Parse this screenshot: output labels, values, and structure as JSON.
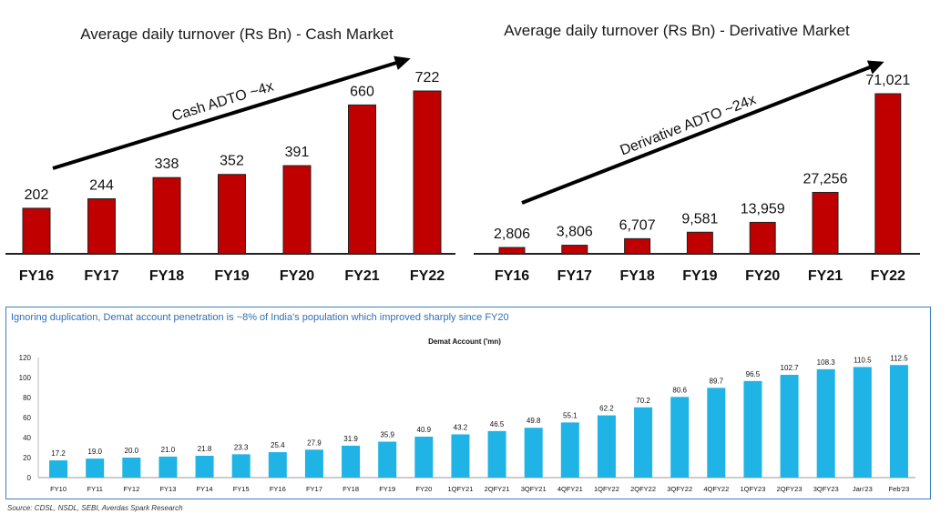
{
  "colors": {
    "bar_red": "#c00000",
    "bar_blue": "#1fb3e6",
    "arrow": "#000000",
    "panel_border": "#3f7fbf"
  },
  "chart_data": [
    {
      "type": "bar",
      "title": "Average daily turnover (Rs Bn) - Cash Market",
      "categories": [
        "FY16",
        "FY17",
        "FY18",
        "FY19",
        "FY20",
        "FY21",
        "FY22"
      ],
      "values": [
        202,
        244,
        338,
        352,
        391,
        660,
        722
      ],
      "labels": [
        "202",
        "244",
        "338",
        "352",
        "391",
        "660",
        "722"
      ],
      "annotation": "Cash ADTO ~4x",
      "ylim": [
        0,
        722
      ]
    },
    {
      "type": "bar",
      "title": "Average daily turnover (Rs Bn) - Derivative Market",
      "categories": [
        "FY16",
        "FY17",
        "FY18",
        "FY19",
        "FY20",
        "FY21",
        "FY22"
      ],
      "values": [
        2806,
        3806,
        6707,
        9581,
        13959,
        27256,
        71021
      ],
      "labels": [
        "2,806",
        "3,806",
        "6,707",
        "9,581",
        "13,959",
        "27,256",
        "71,021"
      ],
      "annotation": "Derivative ADTO ~24x",
      "ylim": [
        0,
        71021
      ]
    },
    {
      "type": "bar",
      "title": "Demat Account ('mn)",
      "categories": [
        "FY10",
        "FY11",
        "FY12",
        "FY13",
        "FY14",
        "FY15",
        "FY16",
        "FY17",
        "FY18",
        "FY19",
        "FY20",
        "1QFY21",
        "2QFY21",
        "3QFY21",
        "4QFY21",
        "1QFY22",
        "2QFY22",
        "3QFY22",
        "4QFY22",
        "1QFY23",
        "2QFY23",
        "3QFY23",
        "Jan'23",
        "Feb'23"
      ],
      "values": [
        17.2,
        19.0,
        20.0,
        21.0,
        21.8,
        23.3,
        25.4,
        27.9,
        31.9,
        35.9,
        40.9,
        43.2,
        46.5,
        49.8,
        55.1,
        62.2,
        70.2,
        80.6,
        89.7,
        96.5,
        102.7,
        108.3,
        110.5,
        112.5
      ],
      "labels": [
        "17.2",
        "19.0",
        "20.0",
        "21.0",
        "21.8",
        "23.3",
        "25.4",
        "27.9",
        "31.9",
        "35.9",
        "40.9",
        "43.2",
        "46.5",
        "49.8",
        "55.1",
        "62.2",
        "70.2",
        "80.6",
        "89.7",
        "96.5",
        "102.7",
        "108.3",
        "110.5",
        "112.5"
      ],
      "yticks": [
        "0",
        "20",
        "40",
        "60",
        "80",
        "100",
        "120"
      ],
      "ylim": [
        0,
        120
      ]
    }
  ],
  "panel": {
    "caption": "Ignoring duplication, Demat account penetration is ~8% of India's population which improved sharply since FY20"
  },
  "source": "Source: CDSL, NSDL, SEBI, Averdas Spark Research"
}
